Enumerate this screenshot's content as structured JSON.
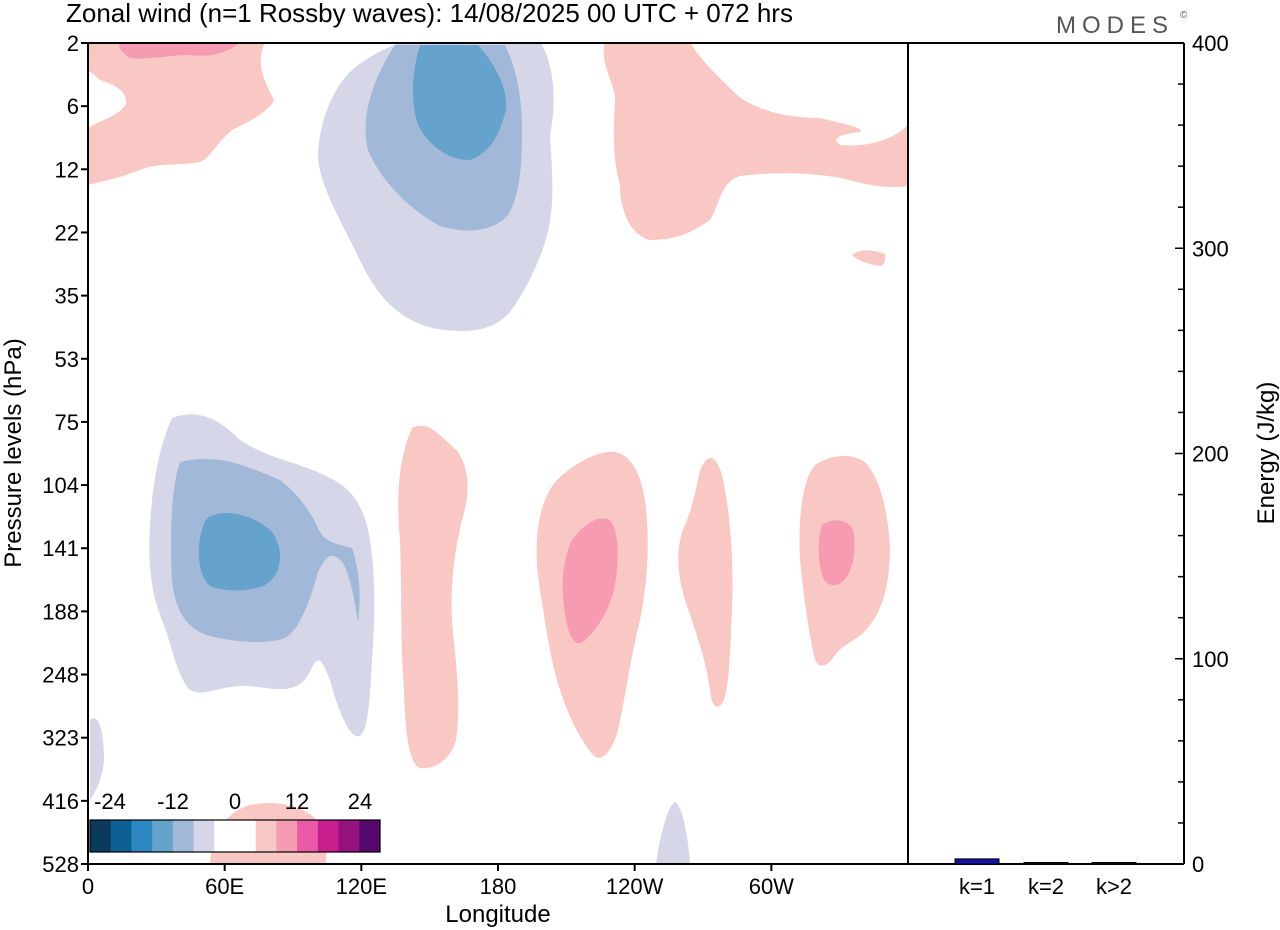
{
  "title": "Zonal wind (n=1 Rossby waves):  14/08/2025  00 UTC  + 072 hrs",
  "brand": "MODES",
  "brand_mark": "©",
  "chart_data": [
    {
      "type": "contour",
      "title": "Zonal wind (n=1 Rossby waves):  14/08/2025  00 UTC  + 072 hrs",
      "xlabel": "Longitude",
      "ylabel": "Pressure levels (hPa)",
      "x_ticks": [
        "0",
        "60E",
        "120E",
        "180",
        "120W",
        "60W"
      ],
      "x_tick_values": [
        0,
        60,
        120,
        180,
        240,
        300
      ],
      "xlim": [
        0,
        360
      ],
      "y_ticks": [
        "2",
        "6",
        "12",
        "22",
        "35",
        "53",
        "75",
        "104",
        "141",
        "188",
        "248",
        "323",
        "416",
        "528"
      ],
      "y_scale": "model levels (top to bottom)",
      "colorbar": {
        "tick_labels": [
          "-24",
          "-12",
          "0",
          "12",
          "24"
        ],
        "colors": [
          "#0b3a5c",
          "#0e5f93",
          "#2b86c2",
          "#66a3cc",
          "#a2b8d8",
          "#d5d6e8",
          "#ffffff",
          "#ffffff",
          "#f9c8c4",
          "#f79bb3",
          "#ea5aa6",
          "#c81f8e",
          "#95127e",
          "#54086b"
        ]
      },
      "features": [
        {
          "sign": "negative",
          "lon_center": 165,
          "level_top": "2",
          "level_bottom": "35",
          "peak_abs": 12
        },
        {
          "sign": "negative",
          "lon_center": 65,
          "level_top": "75",
          "level_bottom": "248",
          "peak_abs": 12
        },
        {
          "sign": "positive",
          "lon_center": 15,
          "level_top": "2",
          "level_bottom": "12",
          "peak_abs": 6
        },
        {
          "sign": "positive",
          "lon_center": 280,
          "level_top": "2",
          "level_bottom": "22",
          "peak_abs": 3
        },
        {
          "sign": "positive",
          "lon_center": 152,
          "level_top": "75",
          "level_bottom": "323",
          "peak_abs": 3
        },
        {
          "sign": "positive",
          "lon_center": 217,
          "level_top": "104",
          "level_bottom": "323",
          "peak_abs": 6
        },
        {
          "sign": "positive",
          "lon_center": 278,
          "level_top": "104",
          "level_bottom": "248",
          "peak_abs": 3
        },
        {
          "sign": "positive",
          "lon_center": 327,
          "level_top": "104",
          "level_bottom": "248",
          "peak_abs": 6
        }
      ]
    },
    {
      "type": "bar",
      "categories": [
        "k=1",
        "k=2",
        "k>2"
      ],
      "values": [
        2.5,
        0.6,
        0.6
      ],
      "ylabel": "Energy (J/kg)",
      "ylim": [
        0,
        400
      ],
      "y_ticks": [
        "0",
        "100",
        "200",
        "300",
        "400"
      ],
      "bar_colors": [
        "#1414a8",
        "#111111",
        "#111111"
      ]
    }
  ]
}
